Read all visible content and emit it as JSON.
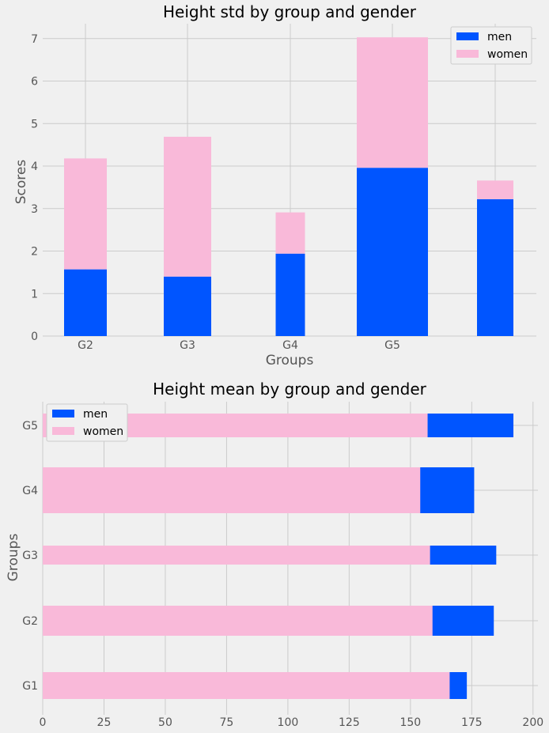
{
  "chart_data": [
    {
      "type": "bar",
      "stacked": true,
      "title": "Height std by group and gender",
      "xlabel": "Groups",
      "ylabel": "Scores",
      "tick_labels": [
        "G2",
        "G3",
        "G4",
        "G5",
        ""
      ],
      "ylim": [
        0,
        7.35
      ],
      "yticks": [
        "0",
        "1",
        "2",
        "3",
        "4",
        "5",
        "6",
        "7"
      ],
      "grid": true,
      "legend_position": "top-right",
      "series": [
        {
          "name": "men",
          "color": "#0055ff",
          "values": [
            1.57,
            1.4,
            1.94,
            3.96,
            3.22
          ]
        },
        {
          "name": "women",
          "color": "#f9b9d9",
          "values": [
            2.61,
            3.29,
            0.97,
            3.07,
            0.44
          ]
        }
      ]
    },
    {
      "type": "bar",
      "orientation": "horizontal",
      "title": "Height mean by group and gender",
      "xlabel": "",
      "ylabel": "Groups",
      "categories": [
        "G1",
        "G2",
        "G3",
        "G4",
        "G5"
      ],
      "xlim": [
        0,
        202
      ],
      "xticks": [
        "0",
        "25",
        "50",
        "75",
        "100",
        "125",
        "150",
        "175",
        "200"
      ],
      "grid": true,
      "legend_position": "top-left",
      "series": [
        {
          "name": "men",
          "color": "#0055ff",
          "values": [
            173,
            184,
            185,
            176,
            192
          ]
        },
        {
          "name": "women",
          "color": "#f9b9d9",
          "values": [
            166,
            159,
            158,
            154,
            157
          ]
        }
      ]
    }
  ]
}
